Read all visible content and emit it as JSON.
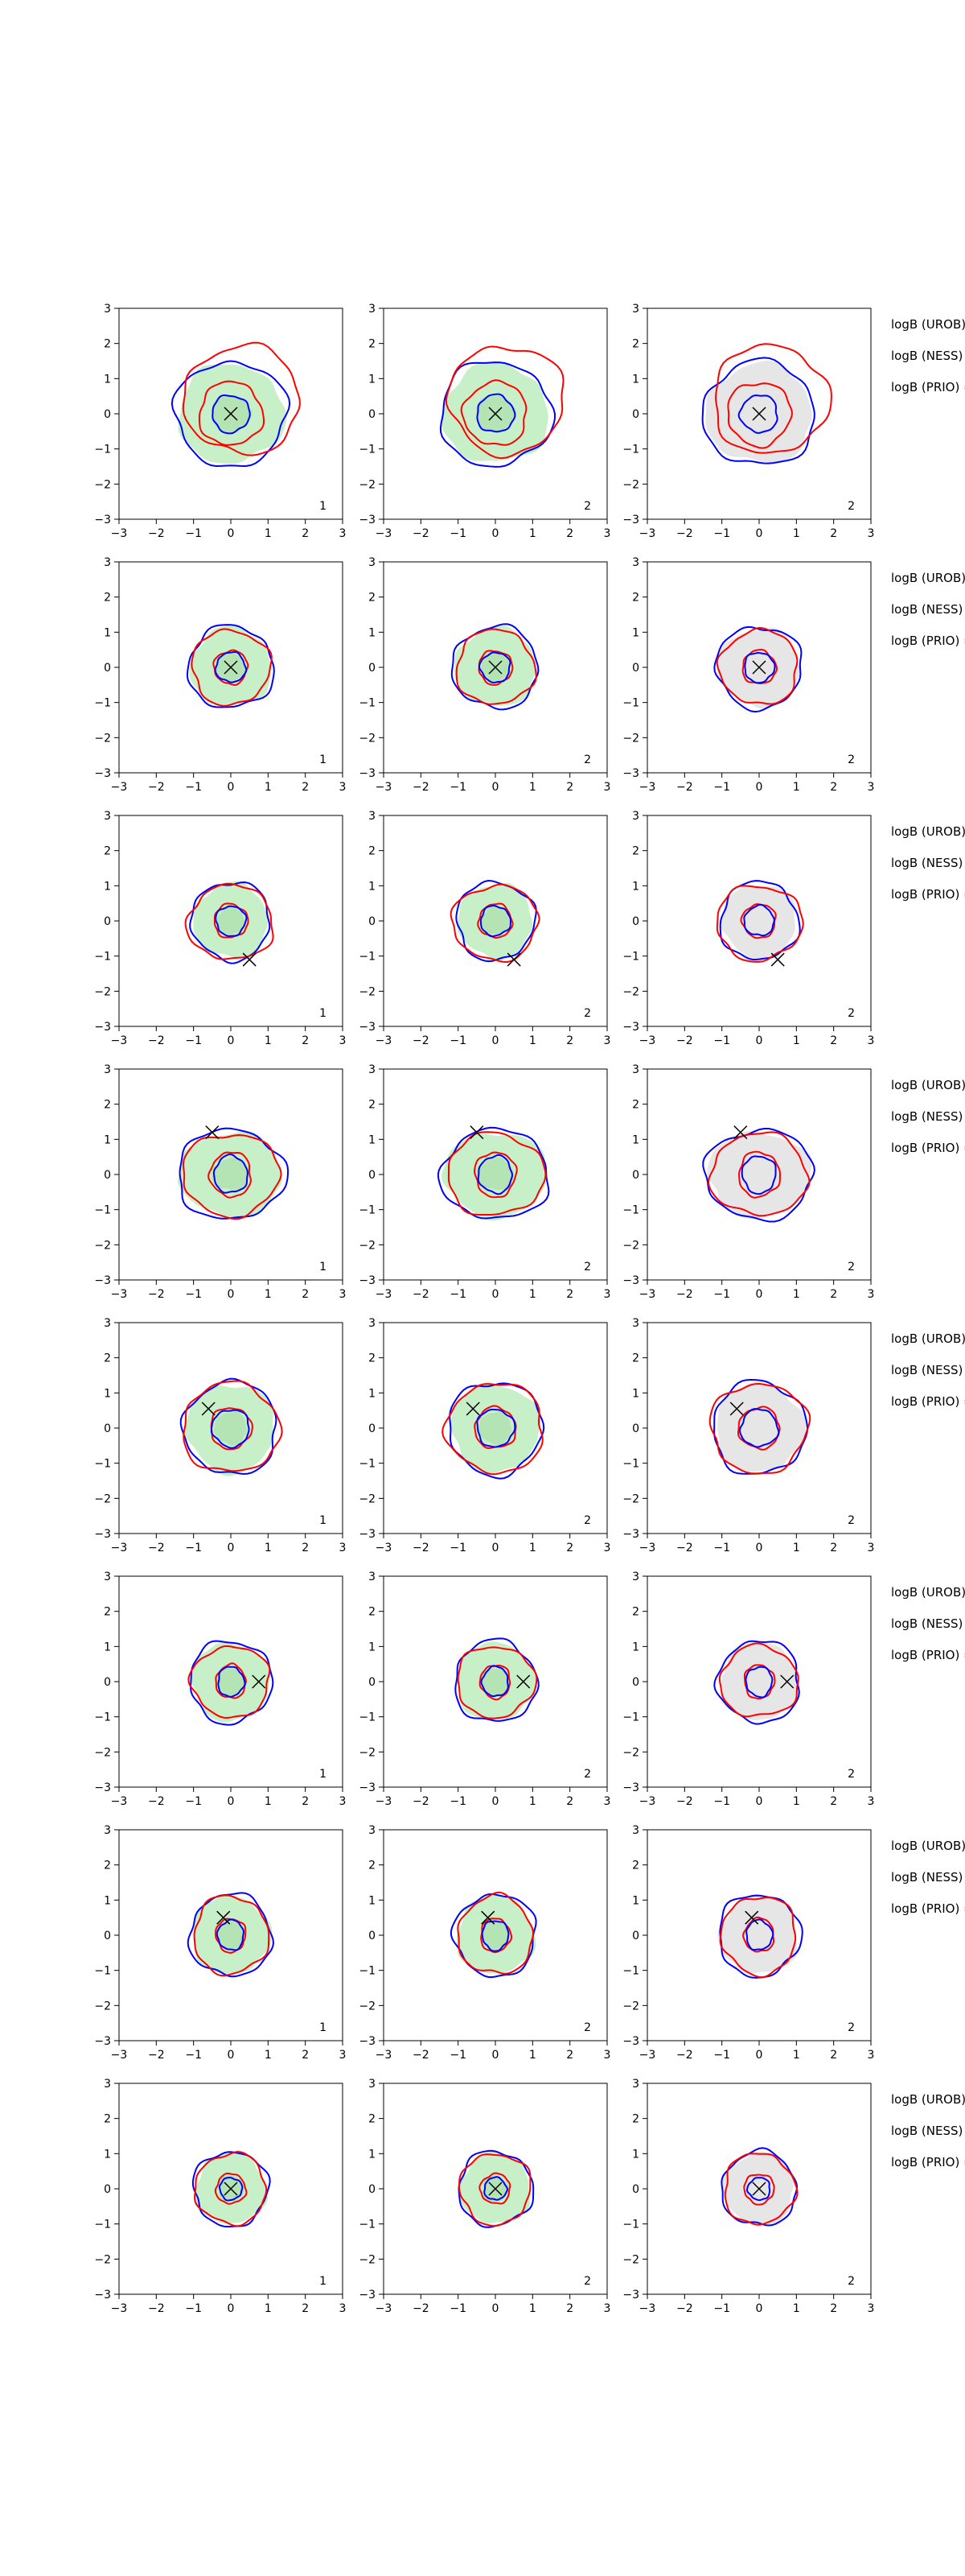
{
  "figure": {
    "title": "",
    "axis_ticks": [
      "−3",
      "−2",
      "−1",
      "0",
      "1",
      "2",
      "3"
    ],
    "colors": {
      "ring_blue": "#0000ff",
      "ring_red": "#ff0000",
      "fill_green": "#c8f0c8",
      "fill_green_dark": "#9fd59f",
      "fill_gray": "#e6e6e6",
      "marker": "#000000"
    }
  },
  "chart_data": {
    "type": "contour-grid",
    "rows": 8,
    "columns": 3,
    "axes": {
      "xlim": [
        -3,
        3
      ],
      "ylim": [
        -3,
        3
      ],
      "xticks": [
        -3,
        -2,
        -1,
        0,
        1,
        2,
        3
      ],
      "yticks": [
        -3,
        -2,
        -1,
        0,
        1,
        2,
        3
      ]
    },
    "column_panel_labels": [
      "1",
      "2",
      "2"
    ],
    "column_fills": [
      "green",
      "green",
      "gray"
    ],
    "row_annotations": [
      "logB (UROB) =",
      "logB (NESS) =",
      "logB (PRIO) ="
    ],
    "rows_data": [
      {
        "marker": [
          0.0,
          0.0
        ],
        "contours": [
          {
            "color": "blue",
            "x": 0.0,
            "y": 0.0,
            "rx": 1.5,
            "ry": 1.4
          },
          {
            "color": "red",
            "x": 0.3,
            "y": 0.4,
            "rx": 1.55,
            "ry": 1.45
          },
          {
            "color": "red",
            "x": 0.0,
            "y": 0.0,
            "rx": 0.85,
            "ry": 0.85
          },
          {
            "color": "blue",
            "x": 0.0,
            "y": 0.0,
            "rx": 0.5,
            "ry": 0.5
          }
        ]
      },
      {
        "marker": [
          0.0,
          0.0
        ],
        "contours": [
          {
            "color": "blue",
            "x": 0.0,
            "y": 0.0,
            "rx": 1.15,
            "ry": 1.1
          },
          {
            "color": "red",
            "x": 0.0,
            "y": 0.0,
            "rx": 1.05,
            "ry": 1.0
          },
          {
            "color": "red",
            "x": 0.0,
            "y": 0.0,
            "rx": 0.45,
            "ry": 0.45
          },
          {
            "color": "blue",
            "x": 0.0,
            "y": 0.0,
            "rx": 0.4,
            "ry": 0.4
          }
        ]
      },
      {
        "marker": [
          0.5,
          -1.1
        ],
        "contours": [
          {
            "color": "blue",
            "x": 0.0,
            "y": 0.0,
            "rx": 1.05,
            "ry": 1.05
          },
          {
            "color": "red",
            "x": 0.0,
            "y": -0.05,
            "rx": 1.15,
            "ry": 1.0
          },
          {
            "color": "red",
            "x": 0.0,
            "y": 0.0,
            "rx": 0.45,
            "ry": 0.45
          },
          {
            "color": "blue",
            "x": 0.0,
            "y": 0.0,
            "rx": 0.4,
            "ry": 0.4
          }
        ]
      },
      {
        "marker": [
          -0.5,
          1.2
        ],
        "contours": [
          {
            "color": "blue",
            "x": 0.0,
            "y": 0.0,
            "rx": 1.45,
            "ry": 1.2
          },
          {
            "color": "red",
            "x": 0.0,
            "y": 0.0,
            "rx": 1.3,
            "ry": 1.1
          },
          {
            "color": "red",
            "x": 0.0,
            "y": 0.0,
            "rx": 0.55,
            "ry": 0.6
          },
          {
            "color": "blue",
            "x": 0.0,
            "y": 0.0,
            "rx": 0.45,
            "ry": 0.5
          }
        ]
      },
      {
        "marker": [
          -0.6,
          0.55
        ],
        "contours": [
          {
            "color": "blue",
            "x": 0.0,
            "y": 0.0,
            "rx": 1.25,
            "ry": 1.25
          },
          {
            "color": "red",
            "x": 0.0,
            "y": 0.0,
            "rx": 1.3,
            "ry": 1.2
          },
          {
            "color": "red",
            "x": 0.0,
            "y": 0.0,
            "rx": 0.55,
            "ry": 0.55
          },
          {
            "color": "blue",
            "x": 0.0,
            "y": 0.0,
            "rx": 0.5,
            "ry": 0.5
          }
        ]
      },
      {
        "marker": [
          0.75,
          0.0
        ],
        "contours": [
          {
            "color": "blue",
            "x": 0.0,
            "y": 0.0,
            "rx": 1.1,
            "ry": 1.1
          },
          {
            "color": "red",
            "x": 0.0,
            "y": 0.0,
            "rx": 1.05,
            "ry": 0.95
          },
          {
            "color": "red",
            "x": 0.0,
            "y": 0.0,
            "rx": 0.4,
            "ry": 0.45
          },
          {
            "color": "blue",
            "x": 0.0,
            "y": 0.0,
            "rx": 0.35,
            "ry": 0.4
          }
        ]
      },
      {
        "marker": [
          -0.2,
          0.5
        ],
        "contours": [
          {
            "color": "blue",
            "x": 0.0,
            "y": 0.0,
            "rx": 1.1,
            "ry": 1.1
          },
          {
            "color": "red",
            "x": 0.0,
            "y": 0.0,
            "rx": 1.0,
            "ry": 1.05
          },
          {
            "color": "red",
            "x": 0.0,
            "y": 0.0,
            "rx": 0.4,
            "ry": 0.45
          },
          {
            "color": "blue",
            "x": 0.0,
            "y": 0.0,
            "rx": 0.35,
            "ry": 0.4
          }
        ]
      },
      {
        "marker": [
          0.0,
          0.0
        ],
        "contours": [
          {
            "color": "blue",
            "x": 0.0,
            "y": 0.0,
            "rx": 1.0,
            "ry": 1.0
          },
          {
            "color": "red",
            "x": 0.0,
            "y": 0.0,
            "rx": 0.95,
            "ry": 0.95
          },
          {
            "color": "red",
            "x": 0.0,
            "y": 0.0,
            "rx": 0.4,
            "ry": 0.4
          },
          {
            "color": "blue",
            "x": 0.0,
            "y": 0.0,
            "rx": 0.3,
            "ry": 0.3
          }
        ]
      }
    ]
  }
}
